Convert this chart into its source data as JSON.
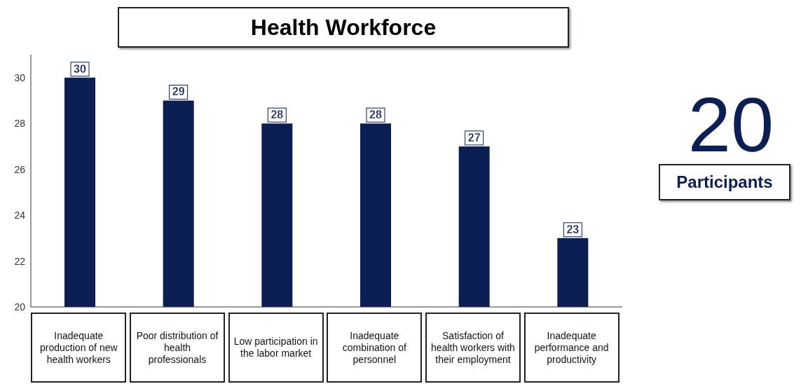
{
  "chart_data": {
    "type": "bar",
    "title": "Health Workforce",
    "categories": [
      "Inadequate production of new health workers",
      "Poor distribution of health professionals",
      "Low participation in the labor market",
      "Inadequate combination of personnel",
      "Satisfaction of health workers with their employment",
      "Inadequate performance and productivity"
    ],
    "values": [
      30,
      29,
      28,
      28,
      27,
      23
    ],
    "color": "#0b1f55",
    "ylim": [
      20,
      31
    ],
    "yticks": [
      20,
      22,
      24,
      26,
      28,
      30
    ],
    "data_labels": true,
    "annotations": [
      "20",
      "Participants"
    ]
  }
}
